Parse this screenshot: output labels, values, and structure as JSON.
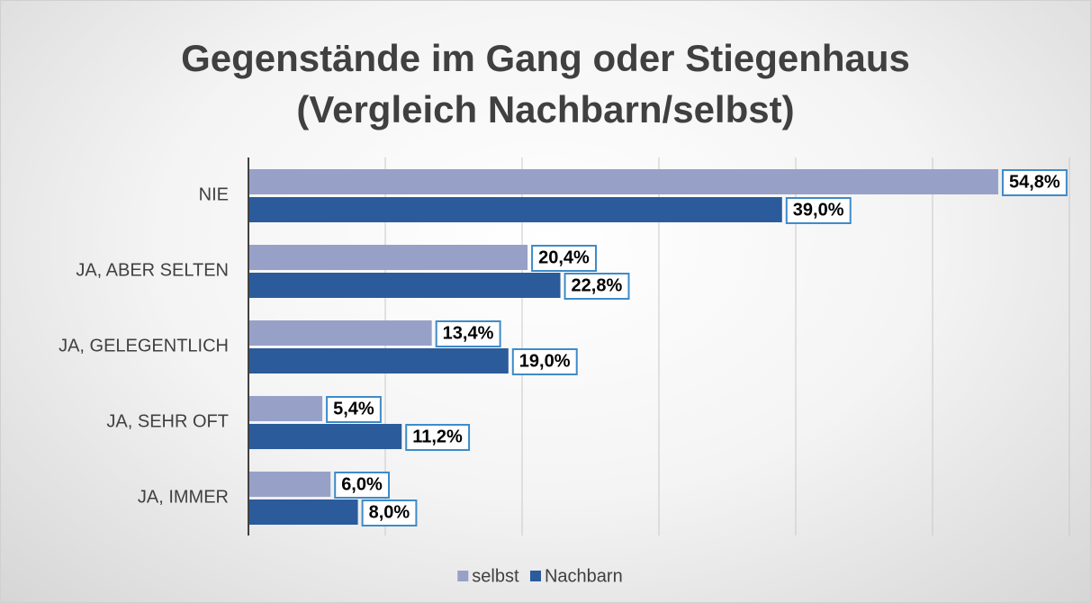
{
  "chart_data": {
    "type": "bar",
    "orientation": "horizontal",
    "title": "Gegenstände im Gang oder Stiegenhaus (Vergleich Nachbarn/selbst)",
    "categories": [
      "NIE",
      "JA, ABER SELTEN",
      "JA, GELEGENTLICH",
      "JA, SEHR OFT",
      "JA, IMMER"
    ],
    "series": [
      {
        "name": "selbst",
        "color": "#97a1c8",
        "values": [
          54.8,
          20.4,
          13.4,
          5.4,
          6.0
        ],
        "value_labels": [
          "54,8%",
          "20,4%",
          "13,4%",
          "5,4%",
          "6,0%"
        ]
      },
      {
        "name": "Nachbarn",
        "color": "#2b5b9b",
        "values": [
          39.0,
          22.8,
          19.0,
          11.2,
          8.0
        ],
        "value_labels": [
          "39,0%",
          "22,8%",
          "19,0%",
          "11,2%",
          "8,0%"
        ]
      }
    ],
    "xlim": [
      0,
      60
    ],
    "xticks": [
      0,
      10,
      20,
      30,
      40,
      50,
      60
    ],
    "grid": true,
    "legend": "bottom"
  }
}
